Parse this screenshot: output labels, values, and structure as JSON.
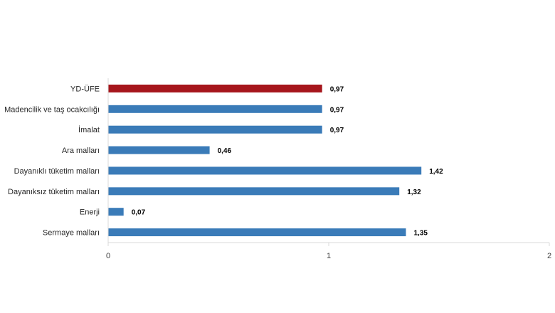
{
  "chart_data": {
    "type": "bar",
    "orientation": "horizontal",
    "categories": [
      "YD-ÜFE",
      "Madencilik ve taş ocakcılığı",
      "İmalat",
      "Ara malları",
      "Dayanıklı tüketim malları",
      "Dayanıksız tüketim malları",
      "Enerji",
      "Sermaye malları"
    ],
    "values": [
      0.97,
      0.97,
      0.97,
      0.46,
      1.42,
      1.32,
      0.07,
      1.35
    ],
    "value_labels": [
      "0,97",
      "0,97",
      "0,97",
      "0,46",
      "1,42",
      "1,32",
      "0,07",
      "1,35"
    ],
    "highlight_index": 0,
    "xlim": [
      0,
      2
    ],
    "xticks": [
      0,
      1,
      2
    ],
    "xtick_labels": [
      "0",
      "1",
      "2"
    ],
    "grid": false,
    "legend": false,
    "title": "",
    "xlabel": "",
    "ylabel": "",
    "colors": {
      "bar": "#3a7bb8",
      "highlight": "#a6161c",
      "axis": "#d9d9d9",
      "category_text": "#262626",
      "value_text": "#000000",
      "tick_text": "#404040"
    }
  }
}
